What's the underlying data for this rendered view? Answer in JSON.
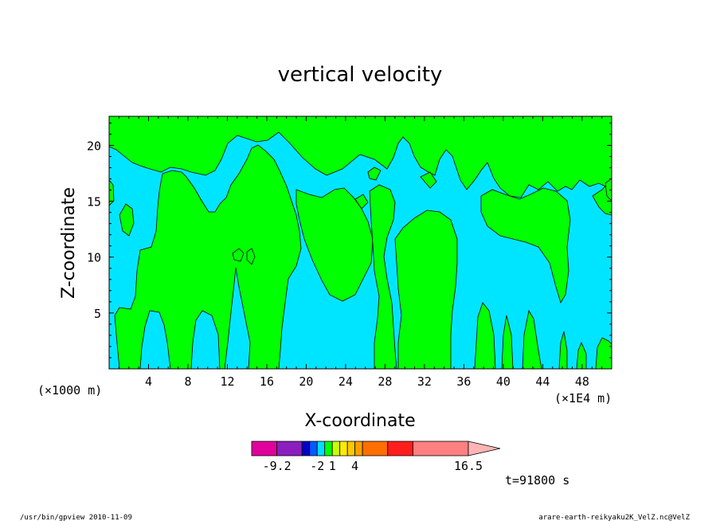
{
  "chart_data": {
    "type": "heatmap",
    "title": "vertical velocity",
    "xlabel": "X-coordinate",
    "ylabel": "Z-coordinate",
    "x_ticks": [
      "4",
      "8",
      "12",
      "16",
      "20",
      "24",
      "28",
      "32",
      "36",
      "40",
      "44",
      "48"
    ],
    "y_ticks": [
      "5",
      "10",
      "15",
      "20"
    ],
    "x_tick_values": [
      4,
      8,
      12,
      16,
      20,
      24,
      28,
      32,
      36,
      40,
      44,
      48
    ],
    "y_tick_values": [
      5,
      10,
      15,
      20
    ],
    "xlim": [
      0,
      51
    ],
    "ylim": [
      0,
      22.6
    ],
    "x_unit": "(×1E4 m)",
    "y_unit": "(×1000 m)",
    "regions": {
      "negative_color": "#00e5ff",
      "positive_color": "#00ff00",
      "contour_color": "#000000"
    },
    "colorbar": {
      "colors": [
        "#e0009c",
        "#8a1ebe",
        "#0000c8",
        "#005aff",
        "#00dcff",
        "#00ff00",
        "#c8ff00",
        "#ffeb00",
        "#ffc800",
        "#ffa000",
        "#ff6e00",
        "#ff1e1e",
        "#ff8080"
      ],
      "widths": [
        2,
        2,
        0.6,
        0.6,
        0.6,
        0.6,
        0.6,
        0.6,
        0.6,
        0.6,
        2,
        2,
        4.4
      ],
      "extend_color": "#ffb4b4",
      "labels": [
        "-9.2",
        "-2",
        "1",
        "4",
        "16.5"
      ],
      "label_values": [
        -9.2,
        -2,
        1,
        4,
        16.5
      ]
    }
  },
  "time_label": "t=91800 s",
  "footer": {
    "left": "/usr/bin/gpview   2010-11-09",
    "right": "arare-earth-reikyaku2K_VelZ.nc@VelZ"
  }
}
